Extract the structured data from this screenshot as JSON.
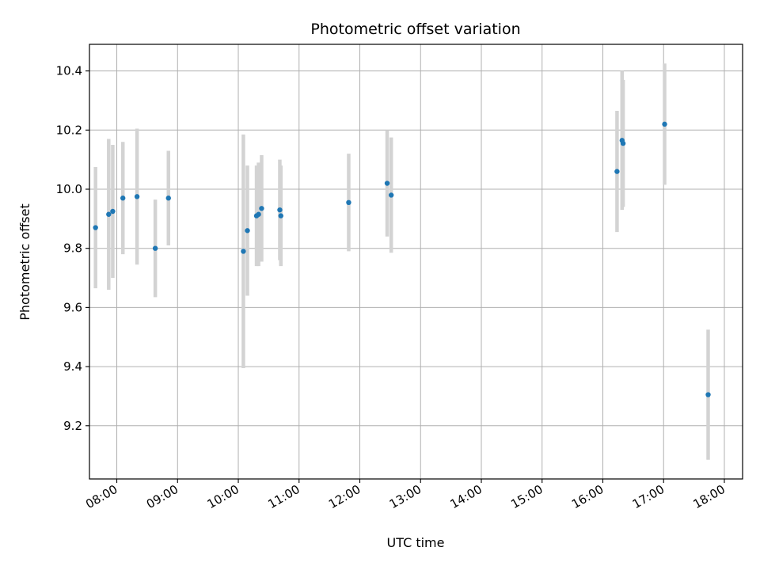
{
  "chart_data": {
    "type": "scatter",
    "title": "Photometric offset variation",
    "xlabel": "UTC time",
    "ylabel": "Photometric offset",
    "grid": true,
    "x_unit": "UTC time (HH:MM)",
    "xlim": [
      "07:33",
      "18:18"
    ],
    "ylim": [
      9.02,
      10.49
    ],
    "xticks": [
      "08:00",
      "09:00",
      "10:00",
      "11:00",
      "12:00",
      "13:00",
      "14:00",
      "15:00",
      "16:00",
      "17:00",
      "18:00"
    ],
    "yticks": [
      9.2,
      9.4,
      9.6,
      9.8,
      10.0,
      10.2,
      10.4
    ],
    "ytick_labels": [
      "9.2",
      "9.4",
      "9.6",
      "9.8",
      "10.0",
      "10.2",
      "10.4"
    ],
    "colors": {
      "points": "#1f77b4",
      "errorbars": "#d3d3d3",
      "grid": "#b0b0b0"
    },
    "points": [
      {
        "x": "07:39",
        "y": 9.87,
        "err": 0.205
      },
      {
        "x": "07:52",
        "y": 9.915,
        "err": 0.255
      },
      {
        "x": "07:56",
        "y": 9.925,
        "err": 0.225
      },
      {
        "x": "08:06",
        "y": 9.97,
        "err": 0.19
      },
      {
        "x": "08:20",
        "y": 9.975,
        "err": 0.23
      },
      {
        "x": "08:38",
        "y": 9.8,
        "err": 0.165
      },
      {
        "x": "08:51",
        "y": 9.97,
        "err": 0.16
      },
      {
        "x": "10:05",
        "y": 9.79,
        "err": 0.395
      },
      {
        "x": "10:09",
        "y": 9.86,
        "err": 0.22
      },
      {
        "x": "10:18",
        "y": 9.91,
        "err": 0.17
      },
      {
        "x": "10:20",
        "y": 9.915,
        "err": 0.175
      },
      {
        "x": "10:23",
        "y": 9.935,
        "err": 0.18
      },
      {
        "x": "10:41",
        "y": 9.93,
        "err": 0.17
      },
      {
        "x": "10:42",
        "y": 9.91,
        "err": 0.17
      },
      {
        "x": "11:49",
        "y": 9.955,
        "err": 0.165
      },
      {
        "x": "12:27",
        "y": 10.02,
        "err": 0.18
      },
      {
        "x": "12:31",
        "y": 9.98,
        "err": 0.195
      },
      {
        "x": "16:14",
        "y": 10.06,
        "err": 0.205
      },
      {
        "x": "16:19",
        "y": 10.165,
        "err": 0.235
      },
      {
        "x": "16:20",
        "y": 10.155,
        "err": 0.215
      },
      {
        "x": "17:01",
        "y": 10.22,
        "err": 0.205
      },
      {
        "x": "17:44",
        "y": 9.305,
        "err": 0.22
      }
    ]
  }
}
